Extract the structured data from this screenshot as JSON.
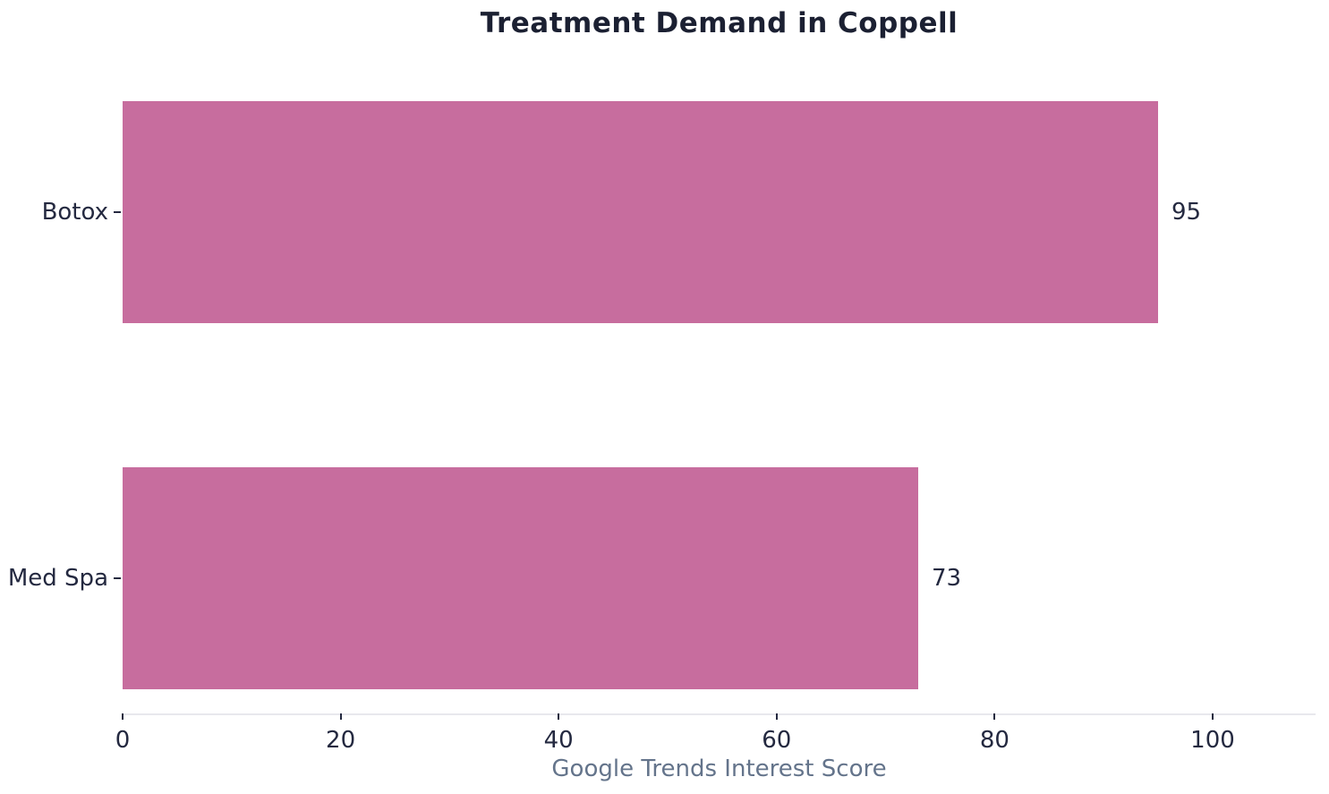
{
  "chart_data": {
    "type": "bar",
    "orientation": "horizontal",
    "title": "Treatment Demand in Coppell",
    "categories": [
      "Botox",
      "Med Spa"
    ],
    "values": [
      95,
      73
    ],
    "value_labels": [
      "95",
      "73"
    ],
    "xlabel": "Google Trends Interest Score",
    "ylabel": "",
    "xticks": [
      0,
      20,
      40,
      60,
      80,
      100
    ],
    "xlim": [
      0,
      109.5
    ],
    "grid": false,
    "legend": null,
    "bar_color": "#c76d9e",
    "title_color": "#1b2032",
    "text_color": "#242940",
    "xlabel_color": "#64748b",
    "spine_color": "#e8e8ed",
    "background_color": "#ffffff"
  }
}
